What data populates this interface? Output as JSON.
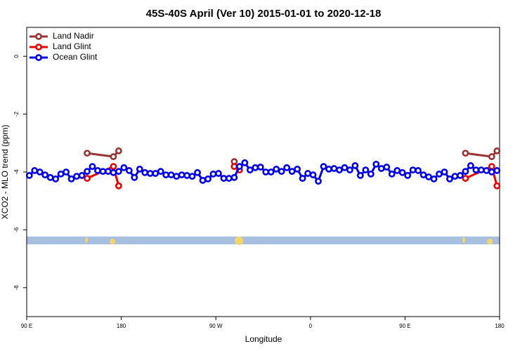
{
  "chart_data": {
    "type": "line",
    "title": "45S-40S April (Ver 10)   2015-01-01 to 2020-12-18",
    "x_label": "Longitude",
    "y_label": "XCO2 - MLO trend (ppm)",
    "xlim": [
      90,
      540
    ],
    "xticks": [
      {
        "value": 90,
        "label": "90 E"
      },
      {
        "value": 180,
        "label": "180"
      },
      {
        "value": 270,
        "label": "90 W"
      },
      {
        "value": 360,
        "label": "0"
      },
      {
        "value": 450,
        "label": "90 E"
      },
      {
        "value": 540,
        "label": "180"
      }
    ],
    "ylim": [
      -9,
      1
    ],
    "yticks": [
      -8,
      -6,
      -4,
      -2,
      0
    ],
    "legend": "top-left",
    "series": [
      {
        "name": "Land Nadir",
        "color": "#993333",
        "x": [
          147.5,
          172.5,
          177.5,
          null,
          287.5,
          null,
          507.5,
          532.5,
          537.5
        ],
        "values": [
          -3.35,
          -3.47,
          -3.27,
          null,
          -3.64,
          null,
          -3.35,
          -3.47,
          -3.27
        ]
      },
      {
        "name": "Land Glint",
        "color": "#ee0000",
        "x": [
          147.5,
          172.5,
          177.5,
          null,
          287.5,
          292.5,
          null,
          507.5,
          532.5,
          537.5
        ],
        "values": [
          -4.22,
          -3.81,
          -4.48,
          null,
          -3.81,
          -3.93,
          null,
          -4.22,
          -3.81,
          -4.48
        ]
      },
      {
        "name": "Ocean Glint",
        "color": "#0000ee",
        "x": [
          92.5,
          97.5,
          102.5,
          107.5,
          112.5,
          117.5,
          122.5,
          127.5,
          132.5,
          137.5,
          142.5,
          147.5,
          152.5,
          157.5,
          162.5,
          167.5,
          172.5,
          177.5,
          182.5,
          187.5,
          192.5,
          197.5,
          202.5,
          207.5,
          212.5,
          217.5,
          222.5,
          227.5,
          232.5,
          237.5,
          242.5,
          247.5,
          252.5,
          257.5,
          262.5,
          267.5,
          272.5,
          277.5,
          282.5,
          287.5,
          292.5,
          297.5,
          302.5,
          307.5,
          312.5,
          317.5,
          322.5,
          327.5,
          332.5,
          337.5,
          342.5,
          347.5,
          352.5,
          357.5,
          362.5,
          367.5,
          372.5,
          377.5,
          382.5,
          387.5,
          392.5,
          397.5,
          402.5,
          407.5,
          412.5,
          417.5,
          422.5,
          427.5,
          432.5,
          437.5,
          442.5,
          447.5,
          452.5,
          457.5,
          462.5,
          467.5,
          472.5,
          477.5,
          482.5,
          487.5,
          492.5,
          497.5,
          502.5,
          507.5,
          512.5,
          517.5,
          522.5,
          527.5,
          532.5,
          537.5
        ],
        "values": [
          -4.12,
          -3.95,
          -4.0,
          -4.1,
          -4.19,
          -4.24,
          -4.07,
          -4.0,
          -4.24,
          -4.15,
          -4.12,
          -3.98,
          -3.81,
          -3.95,
          -3.98,
          -3.98,
          -4.02,
          -3.98,
          -3.85,
          -3.95,
          -4.19,
          -3.9,
          -4.02,
          -4.05,
          -4.05,
          -3.98,
          -4.1,
          -4.1,
          -4.15,
          -4.1,
          -4.12,
          -4.15,
          -4.02,
          -4.29,
          -4.24,
          -4.07,
          -4.05,
          -4.22,
          -4.22,
          -4.19,
          -3.81,
          -3.68,
          -3.93,
          -3.85,
          -3.83,
          -4.0,
          -4.0,
          -3.9,
          -3.98,
          -3.85,
          -3.98,
          -3.9,
          -4.22,
          -4.05,
          -4.1,
          -4.32,
          -3.81,
          -3.9,
          -3.88,
          -3.93,
          -3.85,
          -3.93,
          -3.78,
          -4.12,
          -3.93,
          -4.07,
          -3.73,
          -3.88,
          -3.83,
          -4.07,
          -3.95,
          -4.02,
          -4.12,
          -3.93,
          -3.95,
          -4.1,
          -4.17,
          -4.24,
          -4.07,
          -4.0,
          -4.24,
          -4.15,
          -4.12,
          -3.98,
          -3.78,
          -3.93,
          -3.93,
          -3.95,
          -4.0,
          -3.95
        ]
      }
    ]
  }
}
